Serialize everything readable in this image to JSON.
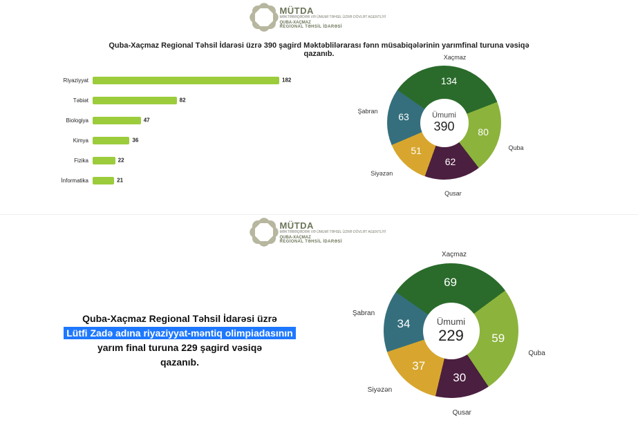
{
  "logo": {
    "title": "MÜTDA",
    "sub1": "MƏKTƏBƏQƏDƏR VƏ ÜMUMİ TƏHSİL ÜZRƏ DÖVLƏT AGENTLİYİ",
    "sub2": "QUBA-XAÇMAZ",
    "sub3": "REGİONAL TƏHSİL İDARƏSİ"
  },
  "top": {
    "title": "Quba-Xaçmaz Regional Təhsil İdarəsi üzrə 390 şagird Məktəblilərarası fənn müsabiqələrinin yarımfinal turuna vəsiqə qazanıb.",
    "barChart": {
      "type": "bar",
      "orientation": "horizontal",
      "bar_color": "#9ccc3c",
      "max": 182,
      "label_fontsize": 8,
      "value_fontsize": 8,
      "bars": [
        {
          "label": "Riyaziyyat",
          "value": 182
        },
        {
          "label": "Təbiət",
          "value": 82
        },
        {
          "label": "Biologiya",
          "value": 47
        },
        {
          "label": "Kimya",
          "value": 36
        },
        {
          "label": "Fizika",
          "value": 22
        },
        {
          "label": "İnformatika",
          "value": 21
        }
      ]
    },
    "donut": {
      "type": "donut",
      "center_label": "Ümumi",
      "center_value": "390",
      "center_label_fontsize": 11,
      "center_value_fontsize": 18,
      "outer_diameter": 165,
      "hole_diameter": 70,
      "value_fontsize": 14,
      "label_fontsize": 9,
      "background": "#ffffff",
      "slices": [
        {
          "label": "Xaçmaz",
          "value": 134,
          "color": "#2a6b2b"
        },
        {
          "label": "Quba",
          "value": 80,
          "color": "#8cb33c"
        },
        {
          "label": "Qusar",
          "value": 62,
          "color": "#4b1f3f"
        },
        {
          "label": "Siyəzən",
          "value": 51,
          "color": "#d8a62e"
        },
        {
          "label": "Şabran",
          "value": 63,
          "color": "#356f7d"
        }
      ]
    }
  },
  "bottom": {
    "text": {
      "line1": "Quba-Xaçmaz Regional Təhsil İdarəsi üzrə",
      "highlight": "Lütfi Zadə adına riyaziyyat-məntiq olimpiadasının",
      "line2a": "yarım final turuna 229 şagird vəsiqə",
      "line2b": "qazanıb."
    },
    "donut": {
      "type": "donut",
      "center_label": "Ümumi",
      "center_value": "229",
      "center_label_fontsize": 13,
      "center_value_fontsize": 22,
      "outer_diameter": 195,
      "hole_diameter": 82,
      "value_fontsize": 17,
      "label_fontsize": 10,
      "background": "#ffffff",
      "slices": [
        {
          "label": "Xaçmaz",
          "value": 69,
          "color": "#2a6b2b"
        },
        {
          "label": "Quba",
          "value": 59,
          "color": "#8cb33c"
        },
        {
          "label": "Qusar",
          "value": 30,
          "color": "#4b1f3f"
        },
        {
          "label": "Siyəzən",
          "value": 37,
          "color": "#d8a62e"
        },
        {
          "label": "Şabran",
          "value": 34,
          "color": "#356f7d"
        }
      ]
    }
  }
}
